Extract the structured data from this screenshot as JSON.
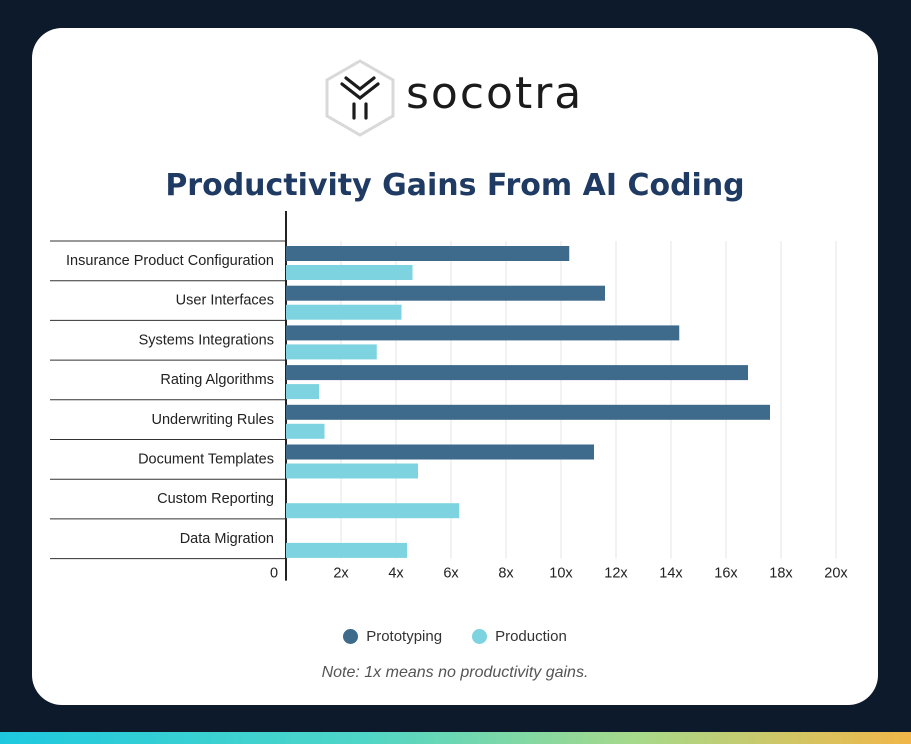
{
  "brand": {
    "name": "socotra"
  },
  "colors": {
    "prototyping": "#3e6a8c",
    "production": "#7dd3e0",
    "title": "#1f3b63"
  },
  "note": "Note: 1x means no productivity gains.",
  "chart_data": {
    "type": "bar",
    "orientation": "horizontal",
    "title": "Productivity Gains From AI Coding",
    "categories": [
      "Insurance Product Configuration",
      "User Interfaces",
      "Systems Integrations",
      "Rating Algorithms",
      "Underwriting Rules",
      "Document Templates",
      "Custom Reporting",
      "Data Migration"
    ],
    "series": [
      {
        "name": "Prototyping",
        "values": [
          10.3,
          11.6,
          14.3,
          16.8,
          17.6,
          11.2,
          null,
          null
        ]
      },
      {
        "name": "Production",
        "values": [
          4.6,
          4.2,
          3.3,
          1.2,
          1.4,
          4.8,
          6.3,
          4.4
        ]
      }
    ],
    "xlim": [
      0,
      20
    ],
    "xticks": [
      "0",
      "2x",
      "4x",
      "6x",
      "8x",
      "10x",
      "12x",
      "14x",
      "16x",
      "18x",
      "20x"
    ],
    "xtick_values": [
      0,
      2,
      4,
      6,
      8,
      10,
      12,
      14,
      16,
      18,
      20
    ],
    "grid": true,
    "legend": "bottom-center"
  }
}
